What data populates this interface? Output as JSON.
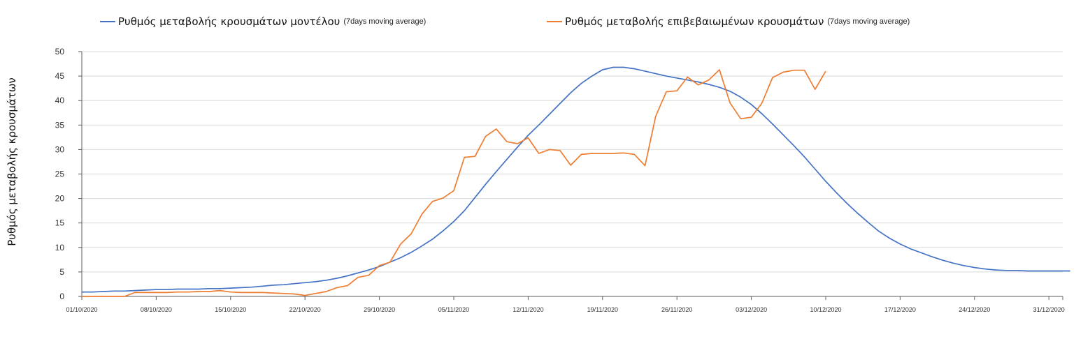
{
  "chart_data": {
    "type": "line",
    "title": "",
    "xlabel": "",
    "ylabel": "Ρυθμός μεταβολής κρουσμάτων",
    "ylim": [
      0,
      50
    ],
    "yticks": [
      0,
      5,
      10,
      15,
      20,
      25,
      30,
      35,
      40,
      45,
      50
    ],
    "grid": true,
    "legend_position": "top",
    "x_start": "01/10/2020",
    "x_end": "02/01/2021",
    "xtick_labels": [
      "01/10/2020",
      "08/10/2020",
      "15/10/2020",
      "22/10/2020",
      "29/10/2020",
      "05/11/2020",
      "12/11/2020",
      "19/11/2020",
      "26/11/2020",
      "03/12/2020",
      "10/12/2020",
      "17/12/2020",
      "24/12/2020",
      "31/12/2020"
    ],
    "series": [
      {
        "name": "Ρυθμός μεταβολής κρουσμάτων μοντέλου",
        "suffix": "(7days moving average)",
        "color": "#4472C4",
        "start_day": 0,
        "values": [
          0.9,
          0.9,
          1.0,
          1.1,
          1.1,
          1.2,
          1.3,
          1.4,
          1.4,
          1.5,
          1.5,
          1.5,
          1.6,
          1.6,
          1.7,
          1.8,
          1.9,
          2.1,
          2.3,
          2.4,
          2.6,
          2.8,
          3.0,
          3.3,
          3.7,
          4.2,
          4.8,
          5.4,
          6.1,
          7.0,
          7.9,
          9.0,
          10.3,
          11.7,
          13.4,
          15.3,
          17.5,
          20.2,
          22.9,
          25.5,
          28.0,
          30.5,
          32.9,
          35.0,
          37.2,
          39.4,
          41.6,
          43.5,
          45.0,
          46.3,
          46.8,
          46.8,
          46.5,
          46.0,
          45.5,
          45.0,
          44.6,
          44.2,
          43.8,
          43.3,
          42.7,
          41.9,
          40.7,
          39.2,
          37.3,
          35.2,
          33.0,
          30.8,
          28.5,
          26.0,
          23.5,
          21.2,
          19.0,
          17.0,
          15.1,
          13.3,
          11.9,
          10.7,
          9.7,
          8.9,
          8.1,
          7.4,
          6.8,
          6.3,
          5.9,
          5.6,
          5.4,
          5.3,
          5.3,
          5.2,
          5.2,
          5.2,
          5.2,
          5.2
        ]
      },
      {
        "name": "Ρυθμός μεταβολής επιβεβαιωμένων κρουσμάτων",
        "suffix": "(7days moving average)",
        "color": "#ED7D31",
        "start_day": 0,
        "values": [
          0.0,
          0.0,
          0.0,
          0.0,
          0.0,
          0.8,
          0.8,
          0.8,
          0.8,
          0.9,
          0.9,
          1.0,
          1.0,
          1.2,
          0.9,
          0.8,
          0.8,
          0.8,
          0.7,
          0.6,
          0.5,
          0.2,
          0.6,
          1.0,
          1.8,
          2.2,
          3.9,
          4.3,
          6.3,
          7.0,
          10.7,
          12.8,
          16.8,
          19.4,
          20.1,
          21.6,
          28.4,
          28.6,
          32.7,
          34.2,
          31.6,
          31.2,
          32.4,
          29.2,
          30.0,
          29.8,
          26.8,
          29.0,
          29.2,
          29.2,
          29.2,
          29.3,
          29.0,
          26.7,
          36.8,
          41.8,
          42.0,
          44.8,
          43.2,
          44.2,
          46.3,
          39.5,
          36.3,
          36.6,
          39.5,
          44.7,
          45.8,
          46.2,
          46.2,
          42.3,
          46.0
        ]
      }
    ]
  }
}
